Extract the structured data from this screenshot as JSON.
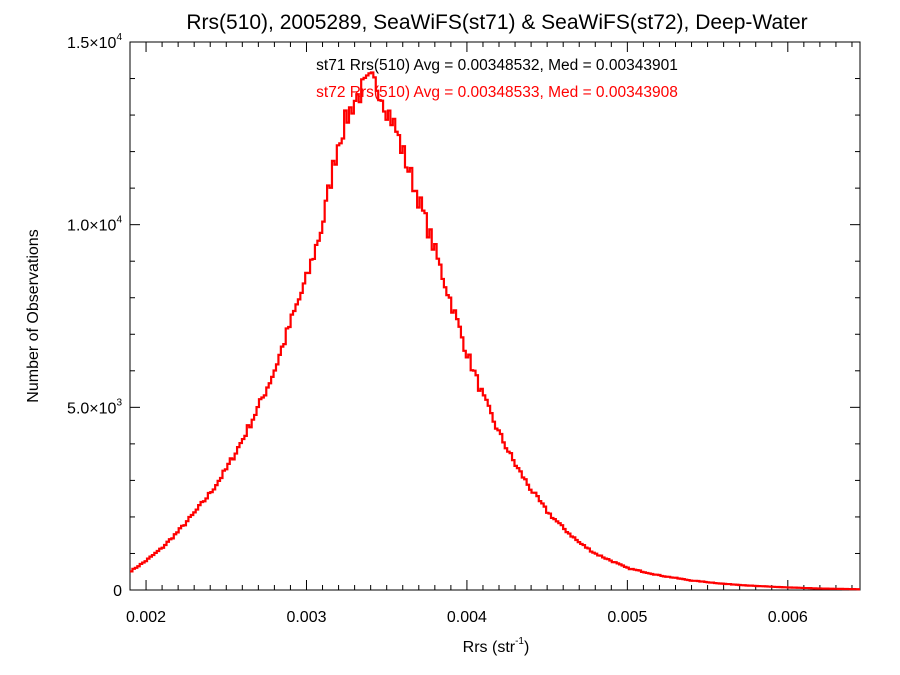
{
  "chart_data": {
    "type": "histogram-step",
    "title": "Rrs(510), 2005289, SeaWiFS(st71) & SeaWiFS(st72), Deep-Water",
    "xlabel": {
      "base": "Rrs (str",
      "sup": "-1",
      "close": ")"
    },
    "ylabel": "Number of Observations",
    "xlim": [
      0.0019,
      0.00645
    ],
    "ylim": [
      0,
      15000
    ],
    "x_ticks": [
      {
        "value": 0.002,
        "label": "0.002"
      },
      {
        "value": 0.003,
        "label": "0.003"
      },
      {
        "value": 0.004,
        "label": "0.004"
      },
      {
        "value": 0.005,
        "label": "0.005"
      },
      {
        "value": 0.006,
        "label": "0.006"
      }
    ],
    "y_ticks": [
      {
        "value": 0,
        "mant": "0",
        "exp": ""
      },
      {
        "value": 5000,
        "mant": "5.0×10",
        "exp": "3"
      },
      {
        "value": 10000,
        "mant": "1.0×10",
        "exp": "4"
      },
      {
        "value": 15000,
        "mant": "1.5×10",
        "exp": "4"
      }
    ],
    "grid": false,
    "annotations": [
      {
        "text": "st71 Rrs(510) Avg = 0.00348532, Med = 0.00343901",
        "color": "#000000"
      },
      {
        "text": "st72 Rrs(510) Avg = 0.00348533, Med = 0.00343908",
        "color": "#ff0000"
      }
    ],
    "series": [
      {
        "color": "#ff0000",
        "x": [
          0.0019,
          0.002,
          0.0021,
          0.0022,
          0.0023,
          0.0024,
          0.0025,
          0.0026,
          0.0027,
          0.0028,
          0.0029,
          0.003,
          0.0031,
          0.00315,
          0.0032,
          0.00325,
          0.0033,
          0.00335,
          0.0034,
          0.00345,
          0.0035,
          0.00355,
          0.0036,
          0.0037,
          0.0038,
          0.0039,
          0.004,
          0.0041,
          0.0042,
          0.0043,
          0.0044,
          0.0045,
          0.0046,
          0.0047,
          0.0048,
          0.0049,
          0.005,
          0.0052,
          0.0054,
          0.0056,
          0.0058,
          0.006,
          0.0062,
          0.00645
        ],
        "y": [
          500,
          800,
          1150,
          1600,
          2100,
          2650,
          3300,
          4100,
          5000,
          6000,
          7300,
          8500,
          10000,
          11200,
          12300,
          12900,
          13400,
          13700,
          13900,
          13800,
          13200,
          12700,
          12000,
          10700,
          9300,
          7900,
          6500,
          5300,
          4300,
          3450,
          2750,
          2150,
          1700,
          1300,
          1000,
          800,
          600,
          400,
          260,
          170,
          110,
          70,
          40,
          20
        ]
      }
    ]
  }
}
